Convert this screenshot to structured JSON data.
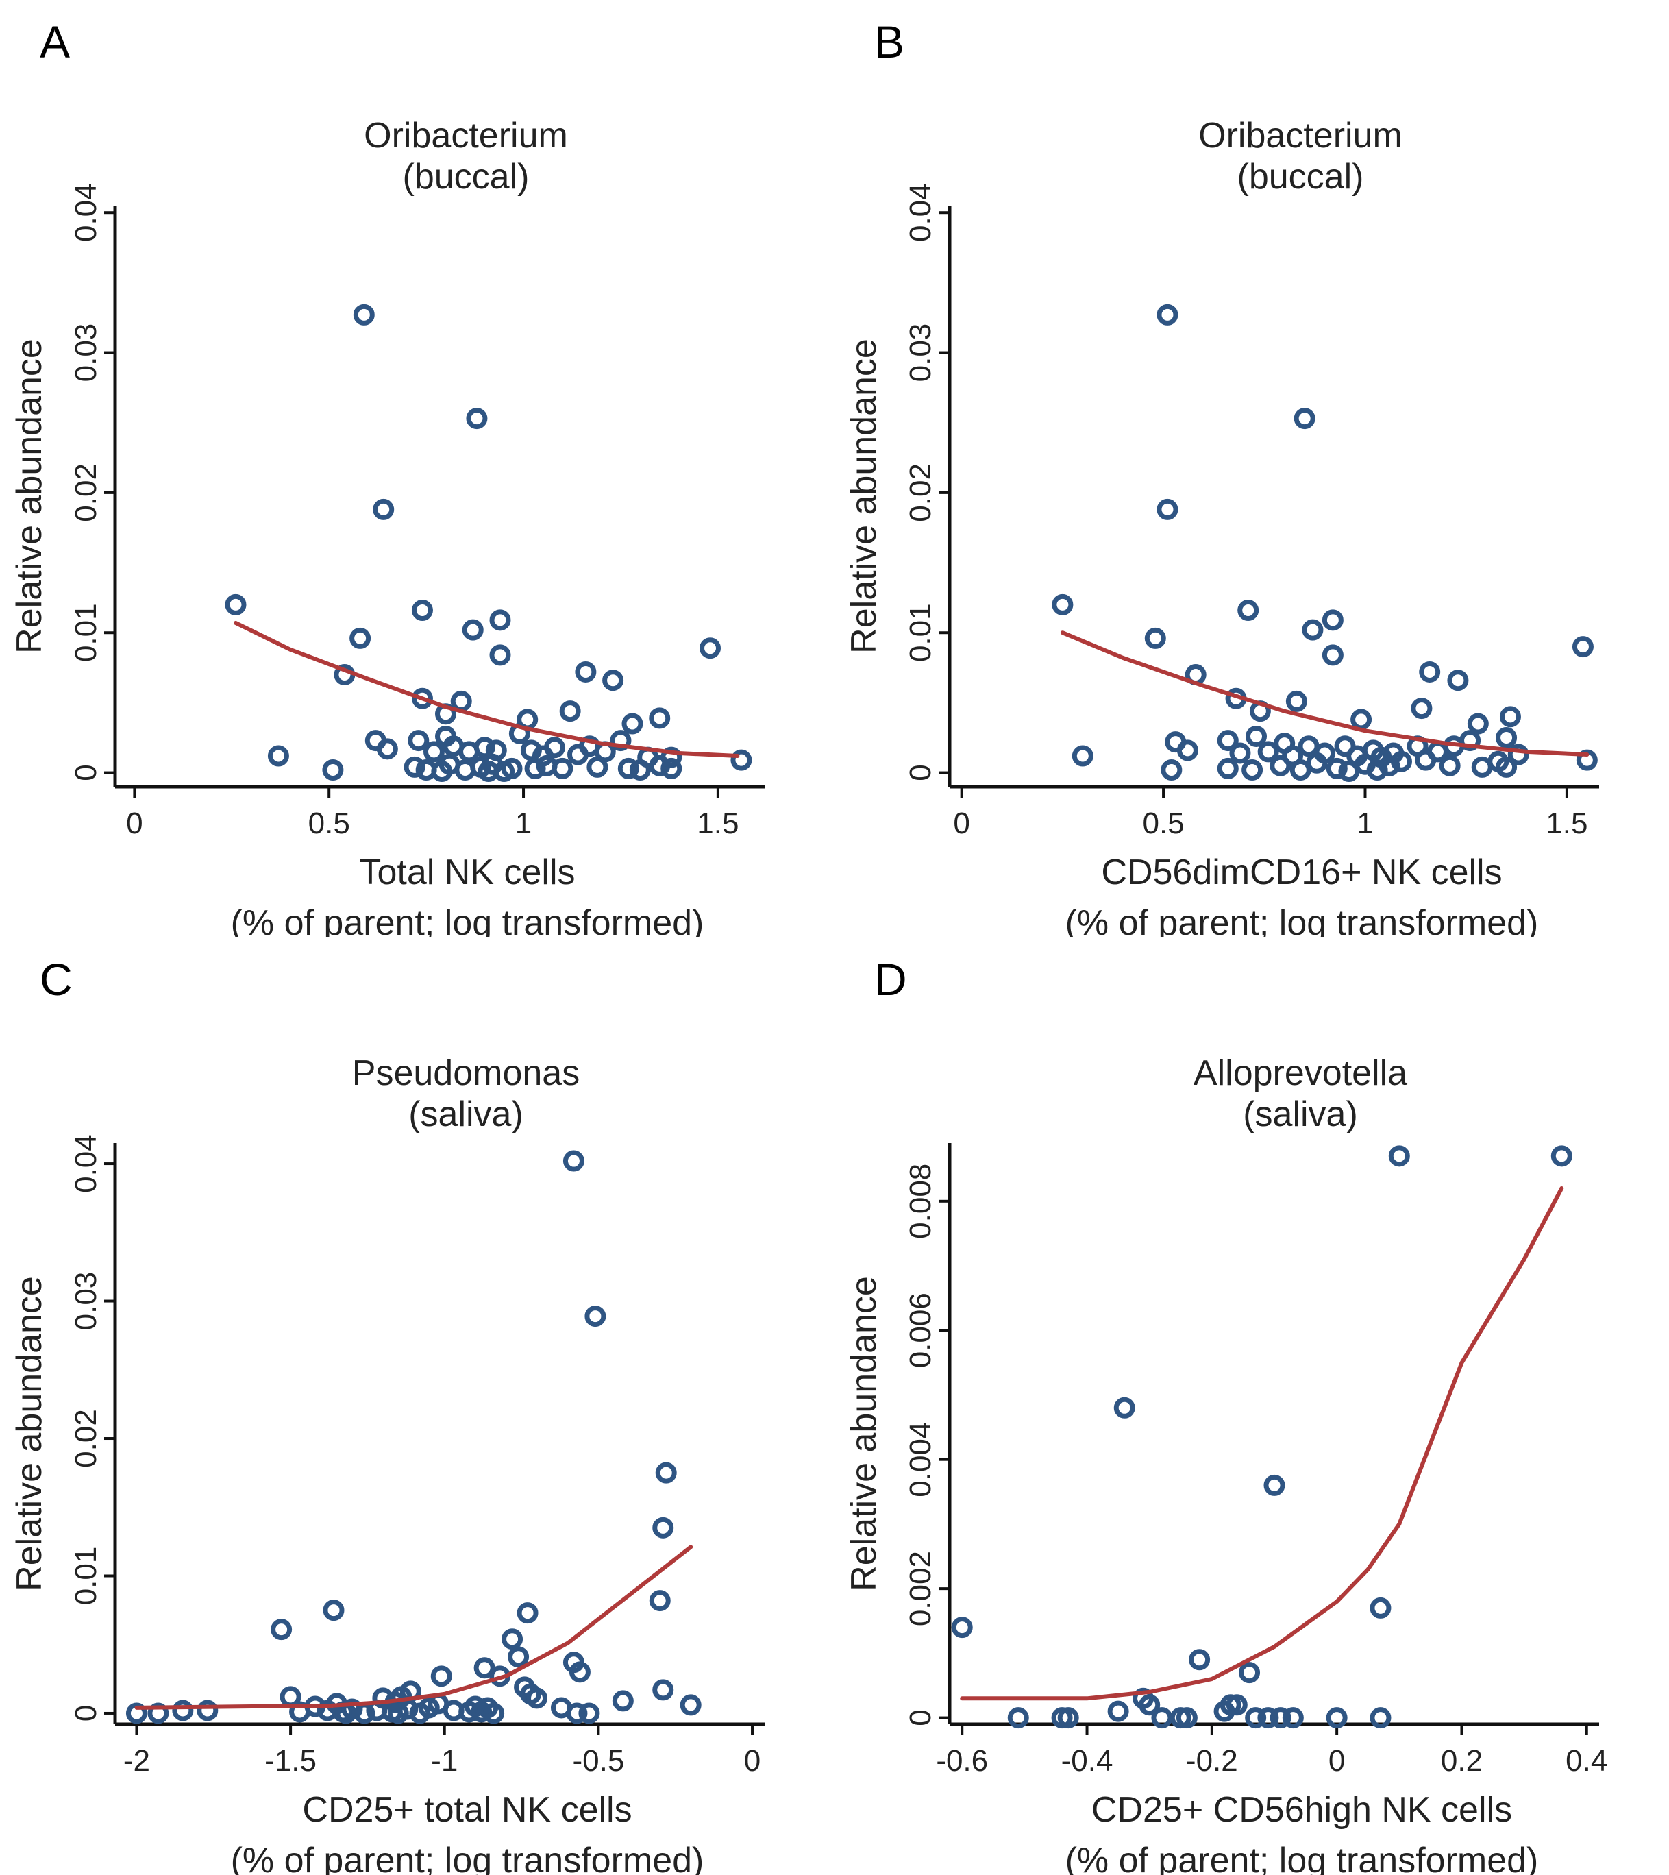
{
  "colors": {
    "points": "#2f5583",
    "fit": "#b03a3a",
    "axis": "#111111"
  },
  "chart_data": [
    {
      "panel": "A",
      "type": "scatter",
      "title": [
        "Oribacterium",
        "(buccal)"
      ],
      "xlabel": [
        "Total NK cells",
        "(% of parent; log transformed)"
      ],
      "xlabel_sup": "",
      "ylabel": "Relative abundance",
      "xlim": [
        -0.05,
        1.62
      ],
      "ylim": [
        -0.001,
        0.0405
      ],
      "xticks": [
        0,
        0.5,
        1,
        1.5
      ],
      "xtick_labels": [
        "0",
        "0.5",
        "1",
        "1.5"
      ],
      "yticks": [
        0,
        0.01,
        0.02,
        0.03,
        0.04
      ],
      "ytick_labels": [
        "0",
        "0.01",
        "0.02",
        "0.03",
        "0.04"
      ],
      "points": [
        [
          0.26,
          0.012
        ],
        [
          0.37,
          0.0012
        ],
        [
          0.51,
          0.0002
        ],
        [
          0.54,
          0.007
        ],
        [
          0.58,
          0.0096
        ],
        [
          0.59,
          0.0327
        ],
        [
          0.62,
          0.0023
        ],
        [
          0.64,
          0.0188
        ],
        [
          0.65,
          0.0017
        ],
        [
          0.74,
          0.0053
        ],
        [
          0.74,
          0.0116
        ],
        [
          0.73,
          0.0023
        ],
        [
          0.72,
          0.0004
        ],
        [
          0.75,
          0.0002
        ],
        [
          0.77,
          0.0015
        ],
        [
          0.79,
          0.0001
        ],
        [
          0.8,
          0.0042
        ],
        [
          0.8,
          0.0026
        ],
        [
          0.81,
          0.0006
        ],
        [
          0.82,
          0.0019
        ],
        [
          0.84,
          0.0051
        ],
        [
          0.85,
          0.0002
        ],
        [
          0.86,
          0.0015
        ],
        [
          0.87,
          0.0102
        ],
        [
          0.88,
          0.0253
        ],
        [
          0.89,
          0.0004
        ],
        [
          0.9,
          0.0018
        ],
        [
          0.91,
          0.0001
        ],
        [
          0.92,
          0.0006
        ],
        [
          0.93,
          0.0016
        ],
        [
          0.94,
          0.0084
        ],
        [
          0.94,
          0.0109
        ],
        [
          0.95,
          0.0001
        ],
        [
          0.97,
          0.0003
        ],
        [
          0.99,
          0.0028
        ],
        [
          1.01,
          0.0038
        ],
        [
          1.02,
          0.0016
        ],
        [
          1.03,
          0.0003
        ],
        [
          1.05,
          0.0012
        ],
        [
          1.06,
          0.0005
        ],
        [
          1.08,
          0.0018
        ],
        [
          1.1,
          0.0003
        ],
        [
          1.12,
          0.0044
        ],
        [
          1.14,
          0.0013
        ],
        [
          1.16,
          0.0072
        ],
        [
          1.17,
          0.0019
        ],
        [
          1.19,
          0.0004
        ],
        [
          1.21,
          0.0015
        ],
        [
          1.23,
          0.0066
        ],
        [
          1.25,
          0.0023
        ],
        [
          1.27,
          0.0003
        ],
        [
          1.28,
          0.0035
        ],
        [
          1.3,
          0.0002
        ],
        [
          1.32,
          0.0011
        ],
        [
          1.35,
          0.0039
        ],
        [
          1.35,
          0.0005
        ],
        [
          1.38,
          0.0003
        ],
        [
          1.38,
          0.0011
        ],
        [
          1.48,
          0.0089
        ],
        [
          1.56,
          0.0009
        ]
      ],
      "fit": [
        [
          0.26,
          0.0107
        ],
        [
          0.4,
          0.0088
        ],
        [
          0.6,
          0.0067
        ],
        [
          0.8,
          0.0047
        ],
        [
          1.0,
          0.0032
        ],
        [
          1.2,
          0.0021
        ],
        [
          1.4,
          0.0014
        ],
        [
          1.55,
          0.0012
        ]
      ]
    },
    {
      "panel": "B",
      "type": "scatter",
      "title": [
        "Oribacterium",
        "(buccal)"
      ],
      "xlabel": [
        "CD56dimCD16+ NK cells",
        "(% of parent; log transformed)"
      ],
      "xlabel_sup": "",
      "ylabel": "Relative abundance",
      "xlim": [
        -0.03,
        1.58
      ],
      "ylim": [
        -0.001,
        0.0405
      ],
      "xticks": [
        0,
        0.5,
        1,
        1.5
      ],
      "xtick_labels": [
        "0",
        "0.5",
        "1",
        "1.5"
      ],
      "yticks": [
        0,
        0.01,
        0.02,
        0.03,
        0.04
      ],
      "ytick_labels": [
        "0",
        "0.01",
        "0.02",
        "0.03",
        "0.04"
      ],
      "points": [
        [
          0.25,
          0.012
        ],
        [
          0.3,
          0.0012
        ],
        [
          0.48,
          0.0096
        ],
        [
          0.51,
          0.0327
        ],
        [
          0.51,
          0.0188
        ],
        [
          0.52,
          0.0002
        ],
        [
          0.53,
          0.0022
        ],
        [
          0.56,
          0.0016
        ],
        [
          0.58,
          0.007
        ],
        [
          0.66,
          0.0023
        ],
        [
          0.66,
          0.0003
        ],
        [
          0.68,
          0.0053
        ],
        [
          0.69,
          0.0014
        ],
        [
          0.71,
          0.0116
        ],
        [
          0.72,
          0.0002
        ],
        [
          0.73,
          0.0026
        ],
        [
          0.74,
          0.0044
        ],
        [
          0.76,
          0.0015
        ],
        [
          0.79,
          0.0005
        ],
        [
          0.8,
          0.0021
        ],
        [
          0.82,
          0.0012
        ],
        [
          0.83,
          0.0051
        ],
        [
          0.84,
          0.0002
        ],
        [
          0.85,
          0.0253
        ],
        [
          0.86,
          0.0019
        ],
        [
          0.87,
          0.0102
        ],
        [
          0.88,
          0.0007
        ],
        [
          0.9,
          0.0014
        ],
        [
          0.92,
          0.0084
        ],
        [
          0.92,
          0.0109
        ],
        [
          0.93,
          0.0003
        ],
        [
          0.95,
          0.0019
        ],
        [
          0.96,
          0.0001
        ],
        [
          0.98,
          0.0012
        ],
        [
          0.99,
          0.0038
        ],
        [
          1.0,
          0.0006
        ],
        [
          1.02,
          0.0016
        ],
        [
          1.03,
          0.0002
        ],
        [
          1.04,
          0.0011
        ],
        [
          1.06,
          0.0005
        ],
        [
          1.07,
          0.0014
        ],
        [
          1.09,
          0.0008
        ],
        [
          1.13,
          0.0019
        ],
        [
          1.14,
          0.0046
        ],
        [
          1.15,
          0.0009
        ],
        [
          1.16,
          0.0072
        ],
        [
          1.18,
          0.0015
        ],
        [
          1.21,
          0.0005
        ],
        [
          1.22,
          0.0019
        ],
        [
          1.23,
          0.0066
        ],
        [
          1.26,
          0.0023
        ],
        [
          1.28,
          0.0035
        ],
        [
          1.29,
          0.0004
        ],
        [
          1.33,
          0.0008
        ],
        [
          1.35,
          0.0025
        ],
        [
          1.35,
          0.0004
        ],
        [
          1.36,
          0.004
        ],
        [
          1.38,
          0.0013
        ],
        [
          1.54,
          0.009
        ],
        [
          1.55,
          0.0009
        ]
      ],
      "fit": [
        [
          0.25,
          0.01
        ],
        [
          0.4,
          0.0082
        ],
        [
          0.6,
          0.0062
        ],
        [
          0.8,
          0.0044
        ],
        [
          1.0,
          0.003
        ],
        [
          1.2,
          0.0021
        ],
        [
          1.4,
          0.0015
        ],
        [
          1.55,
          0.0013
        ]
      ]
    },
    {
      "panel": "C",
      "type": "scatter",
      "title": [
        "Pseudomonas",
        "(saliva)"
      ],
      "xlabel": [
        "CD25+ total NK cells",
        "(% of parent; log transformed)"
      ],
      "xlabel_sup": "",
      "ylabel": "Relative abundance",
      "xlim": [
        -2.07,
        0.04
      ],
      "ylim": [
        -0.0008,
        0.0415
      ],
      "xticks": [
        -2,
        -1.5,
        -1,
        -0.5,
        0
      ],
      "xtick_labels": [
        "-2",
        "-1.5",
        "-1",
        "-0.5",
        "0"
      ],
      "yticks": [
        0,
        0.01,
        0.02,
        0.03,
        0.04
      ],
      "ytick_labels": [
        "0",
        "0.01",
        "0.02",
        "0.03",
        "0.04"
      ],
      "points": [
        [
          -2.0,
          0.0
        ],
        [
          -1.93,
          0.0
        ],
        [
          -1.85,
          0.0002
        ],
        [
          -1.77,
          0.0002
        ],
        [
          -1.53,
          0.0061
        ],
        [
          -1.5,
          0.0012
        ],
        [
          -1.47,
          0.0001
        ],
        [
          -1.42,
          0.0005
        ],
        [
          -1.38,
          0.0002
        ],
        [
          -1.36,
          0.0075
        ],
        [
          -1.35,
          0.0007
        ],
        [
          -1.33,
          0.0001
        ],
        [
          -1.32,
          0.0
        ],
        [
          -1.3,
          0.0003
        ],
        [
          -1.26,
          0.0
        ],
        [
          -1.22,
          0.0002
        ],
        [
          -1.2,
          0.0011
        ],
        [
          -1.17,
          0.0001
        ],
        [
          -1.16,
          0.0008
        ],
        [
          -1.15,
          0.0
        ],
        [
          -1.14,
          0.0012
        ],
        [
          -1.12,
          0.0003
        ],
        [
          -1.11,
          0.0016
        ],
        [
          -1.08,
          0.0
        ],
        [
          -1.05,
          0.0004
        ],
        [
          -1.02,
          0.0007
        ],
        [
          -1.01,
          0.0027
        ],
        [
          -0.97,
          0.0002
        ],
        [
          -0.92,
          0.0001
        ],
        [
          -0.9,
          0.0005
        ],
        [
          -0.88,
          0.0001
        ],
        [
          -0.87,
          0.0033
        ],
        [
          -0.86,
          0.0004
        ],
        [
          -0.84,
          0.0
        ],
        [
          -0.82,
          0.0027
        ],
        [
          -0.78,
          0.0054
        ],
        [
          -0.76,
          0.0041
        ],
        [
          -0.74,
          0.0019
        ],
        [
          -0.73,
          0.0073
        ],
        [
          -0.72,
          0.0014
        ],
        [
          -0.7,
          0.0011
        ],
        [
          -0.62,
          0.0004
        ],
        [
          -0.58,
          0.0402
        ],
        [
          -0.58,
          0.0037
        ],
        [
          -0.57,
          0.0
        ],
        [
          -0.56,
          0.003
        ],
        [
          -0.53,
          0.0
        ],
        [
          -0.51,
          0.0289
        ],
        [
          -0.42,
          0.0009
        ],
        [
          -0.3,
          0.0082
        ],
        [
          -0.29,
          0.0135
        ],
        [
          -0.29,
          0.0017
        ],
        [
          -0.28,
          0.0175
        ],
        [
          -0.2,
          0.0006
        ]
      ],
      "fit": [
        [
          -2.0,
          0.0004
        ],
        [
          -1.6,
          0.0005
        ],
        [
          -1.4,
          0.0005
        ],
        [
          -1.2,
          0.0008
        ],
        [
          -1.0,
          0.0014
        ],
        [
          -0.8,
          0.0027
        ],
        [
          -0.6,
          0.0051
        ],
        [
          -0.4,
          0.0086
        ],
        [
          -0.2,
          0.0121
        ]
      ]
    },
    {
      "panel": "D",
      "type": "scatter",
      "title": [
        "Alloprevotella",
        "(saliva)"
      ],
      "xlabel": [
        "CD25+ CD56high NK cells",
        "(% of parent; log transformed)"
      ],
      "xlabel_sup": "",
      "ylabel": "Relative abundance",
      "xlim": [
        -0.62,
        0.42
      ],
      "ylim": [
        -0.0001,
        0.0089
      ],
      "xticks": [
        -0.6,
        -0.4,
        -0.2,
        0,
        0.2,
        0.4
      ],
      "xtick_labels": [
        "-0.6",
        "-0.4",
        "-0.2",
        "0",
        "0.2",
        "0.4"
      ],
      "yticks": [
        0,
        0.002,
        0.004,
        0.006,
        0.008
      ],
      "ytick_labels": [
        "0",
        "0.002",
        "0.004",
        "0.006",
        "0.008"
      ],
      "points": [
        [
          -0.6,
          0.0014
        ],
        [
          -0.51,
          0.0
        ],
        [
          -0.44,
          0.0
        ],
        [
          -0.43,
          0.0
        ],
        [
          -0.34,
          0.0048
        ],
        [
          -0.35,
          0.0001
        ],
        [
          -0.31,
          0.0003
        ],
        [
          -0.3,
          0.0002
        ],
        [
          -0.28,
          0.0
        ],
        [
          -0.25,
          0.0
        ],
        [
          -0.24,
          0.0
        ],
        [
          -0.22,
          0.0009
        ],
        [
          -0.18,
          0.0001
        ],
        [
          -0.17,
          0.0002
        ],
        [
          -0.16,
          0.0002
        ],
        [
          -0.14,
          0.0007
        ],
        [
          -0.13,
          0.0
        ],
        [
          -0.11,
          0.0
        ],
        [
          -0.1,
          0.0036
        ],
        [
          -0.09,
          0.0
        ],
        [
          -0.07,
          0.0
        ],
        [
          0.0,
          0.0
        ],
        [
          0.07,
          0.0
        ],
        [
          0.07,
          0.0017
        ],
        [
          0.1,
          0.0087
        ],
        [
          0.36,
          0.0087
        ]
      ],
      "fit": [
        [
          -0.6,
          0.0003
        ],
        [
          -0.4,
          0.0003
        ],
        [
          -0.3,
          0.0004
        ],
        [
          -0.2,
          0.0006
        ],
        [
          -0.1,
          0.0011
        ],
        [
          0.0,
          0.0018
        ],
        [
          0.05,
          0.0023
        ],
        [
          0.1,
          0.003
        ],
        [
          0.2,
          0.0055
        ],
        [
          0.3,
          0.0071
        ],
        [
          0.36,
          0.0082
        ]
      ]
    }
  ]
}
